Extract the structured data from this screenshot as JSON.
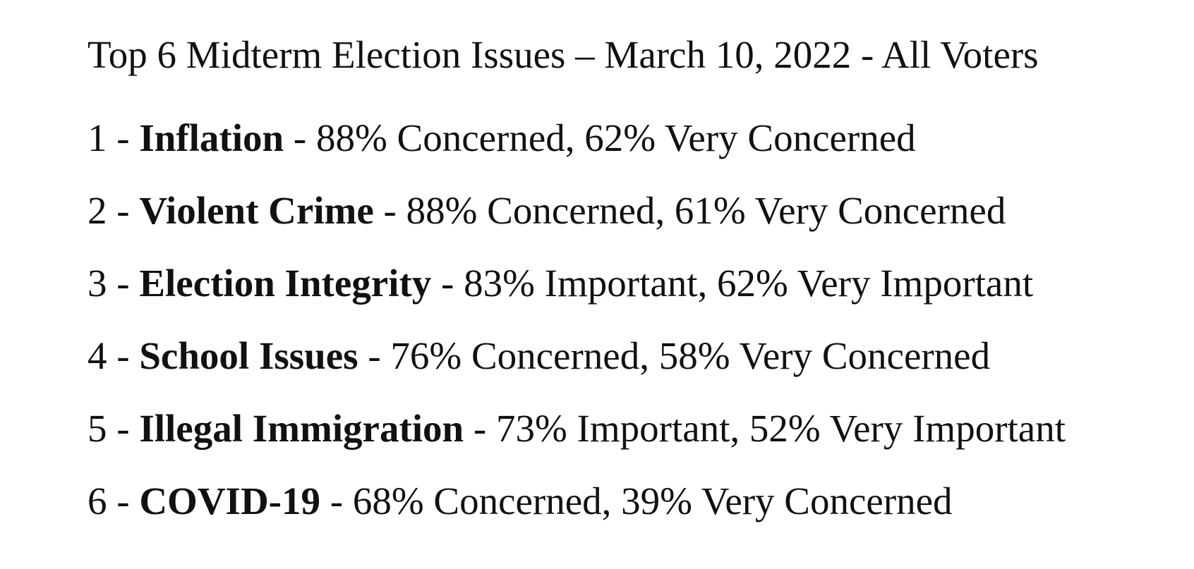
{
  "document": {
    "title": "Top 6 Midterm Election Issues – March 10, 2022 - All Voters",
    "issues": [
      {
        "rank": "1",
        "name": "Inflation",
        "detail": "88% Concerned, 62% Very Concerned"
      },
      {
        "rank": "2",
        "name": "Violent Crime",
        "detail": "88% Concerned, 61% Very Concerned"
      },
      {
        "rank": "3",
        "name": "Election Integrity",
        "detail": "83% Important, 62% Very Important"
      },
      {
        "rank": "4",
        "name": "School Issues",
        "detail": "76% Concerned, 58% Very Concerned"
      },
      {
        "rank": "5",
        "name": "Illegal Immigration",
        "detail": "73% Important, 52% Very Important"
      },
      {
        "rank": "6",
        "name": "COVID-19",
        "detail": "68% Concerned, 39% Very Concerned"
      }
    ]
  }
}
